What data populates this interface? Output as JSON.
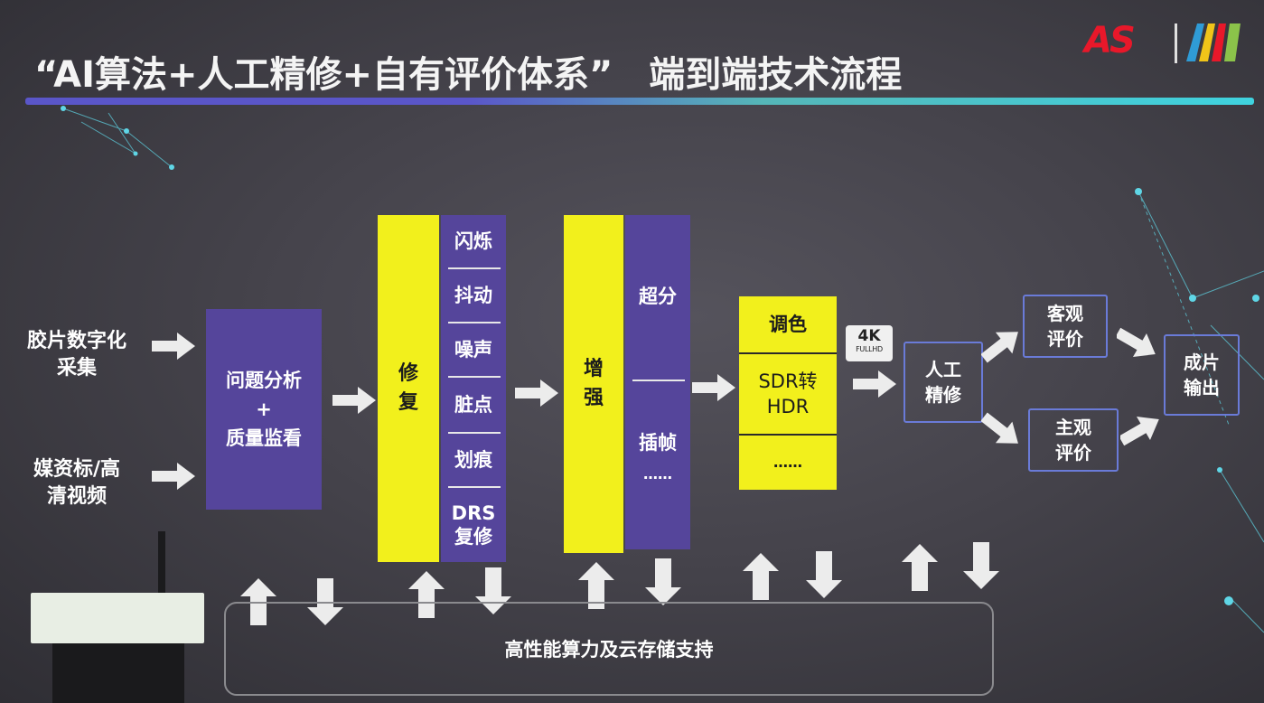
{
  "title": "“AI算法+人工精修+自有评价体系”  端到端技术流程",
  "title_parts": [
    "“AI算法+人工精修+自有评价体系”",
    "端到端技术流程"
  ],
  "logo": {
    "left_text": "AS",
    "divider": "|"
  },
  "colors": {
    "purple": "#55459b",
    "yellow": "#f2f01c",
    "outline_blue": "#6a7bd8",
    "accent_red": "#e8182a",
    "bar_start": "#5a56c9",
    "bar_end": "#3fd3df"
  },
  "sources": [
    {
      "lines": [
        "胶片数字化",
        "采集"
      ]
    },
    {
      "lines": [
        "媒资标/高",
        "清视频"
      ]
    }
  ],
  "analysis": {
    "lines": [
      "问题分析",
      "+",
      "质量监看"
    ]
  },
  "repair": {
    "label": [
      "修",
      "复"
    ],
    "items": [
      "闪烁",
      "抖动",
      "噪声",
      "脏点",
      "划痕",
      "DRS复修"
    ]
  },
  "enhance": {
    "label": [
      "增",
      "强"
    ],
    "items": [
      "超分",
      "插帧",
      "……"
    ]
  },
  "grading": {
    "items": [
      "调色",
      "SDR转HDR",
      "……"
    ]
  },
  "badge": {
    "main": "4K",
    "sub": "FULLHD"
  },
  "manual": {
    "lines": [
      "人工",
      "精修"
    ]
  },
  "objective": {
    "lines": [
      "客观",
      "评价"
    ]
  },
  "subjective": {
    "lines": [
      "主观",
      "评价"
    ]
  },
  "output": {
    "lines": [
      "成片",
      "输出"
    ]
  },
  "support": {
    "label": "高性能算力及云存储支持"
  }
}
